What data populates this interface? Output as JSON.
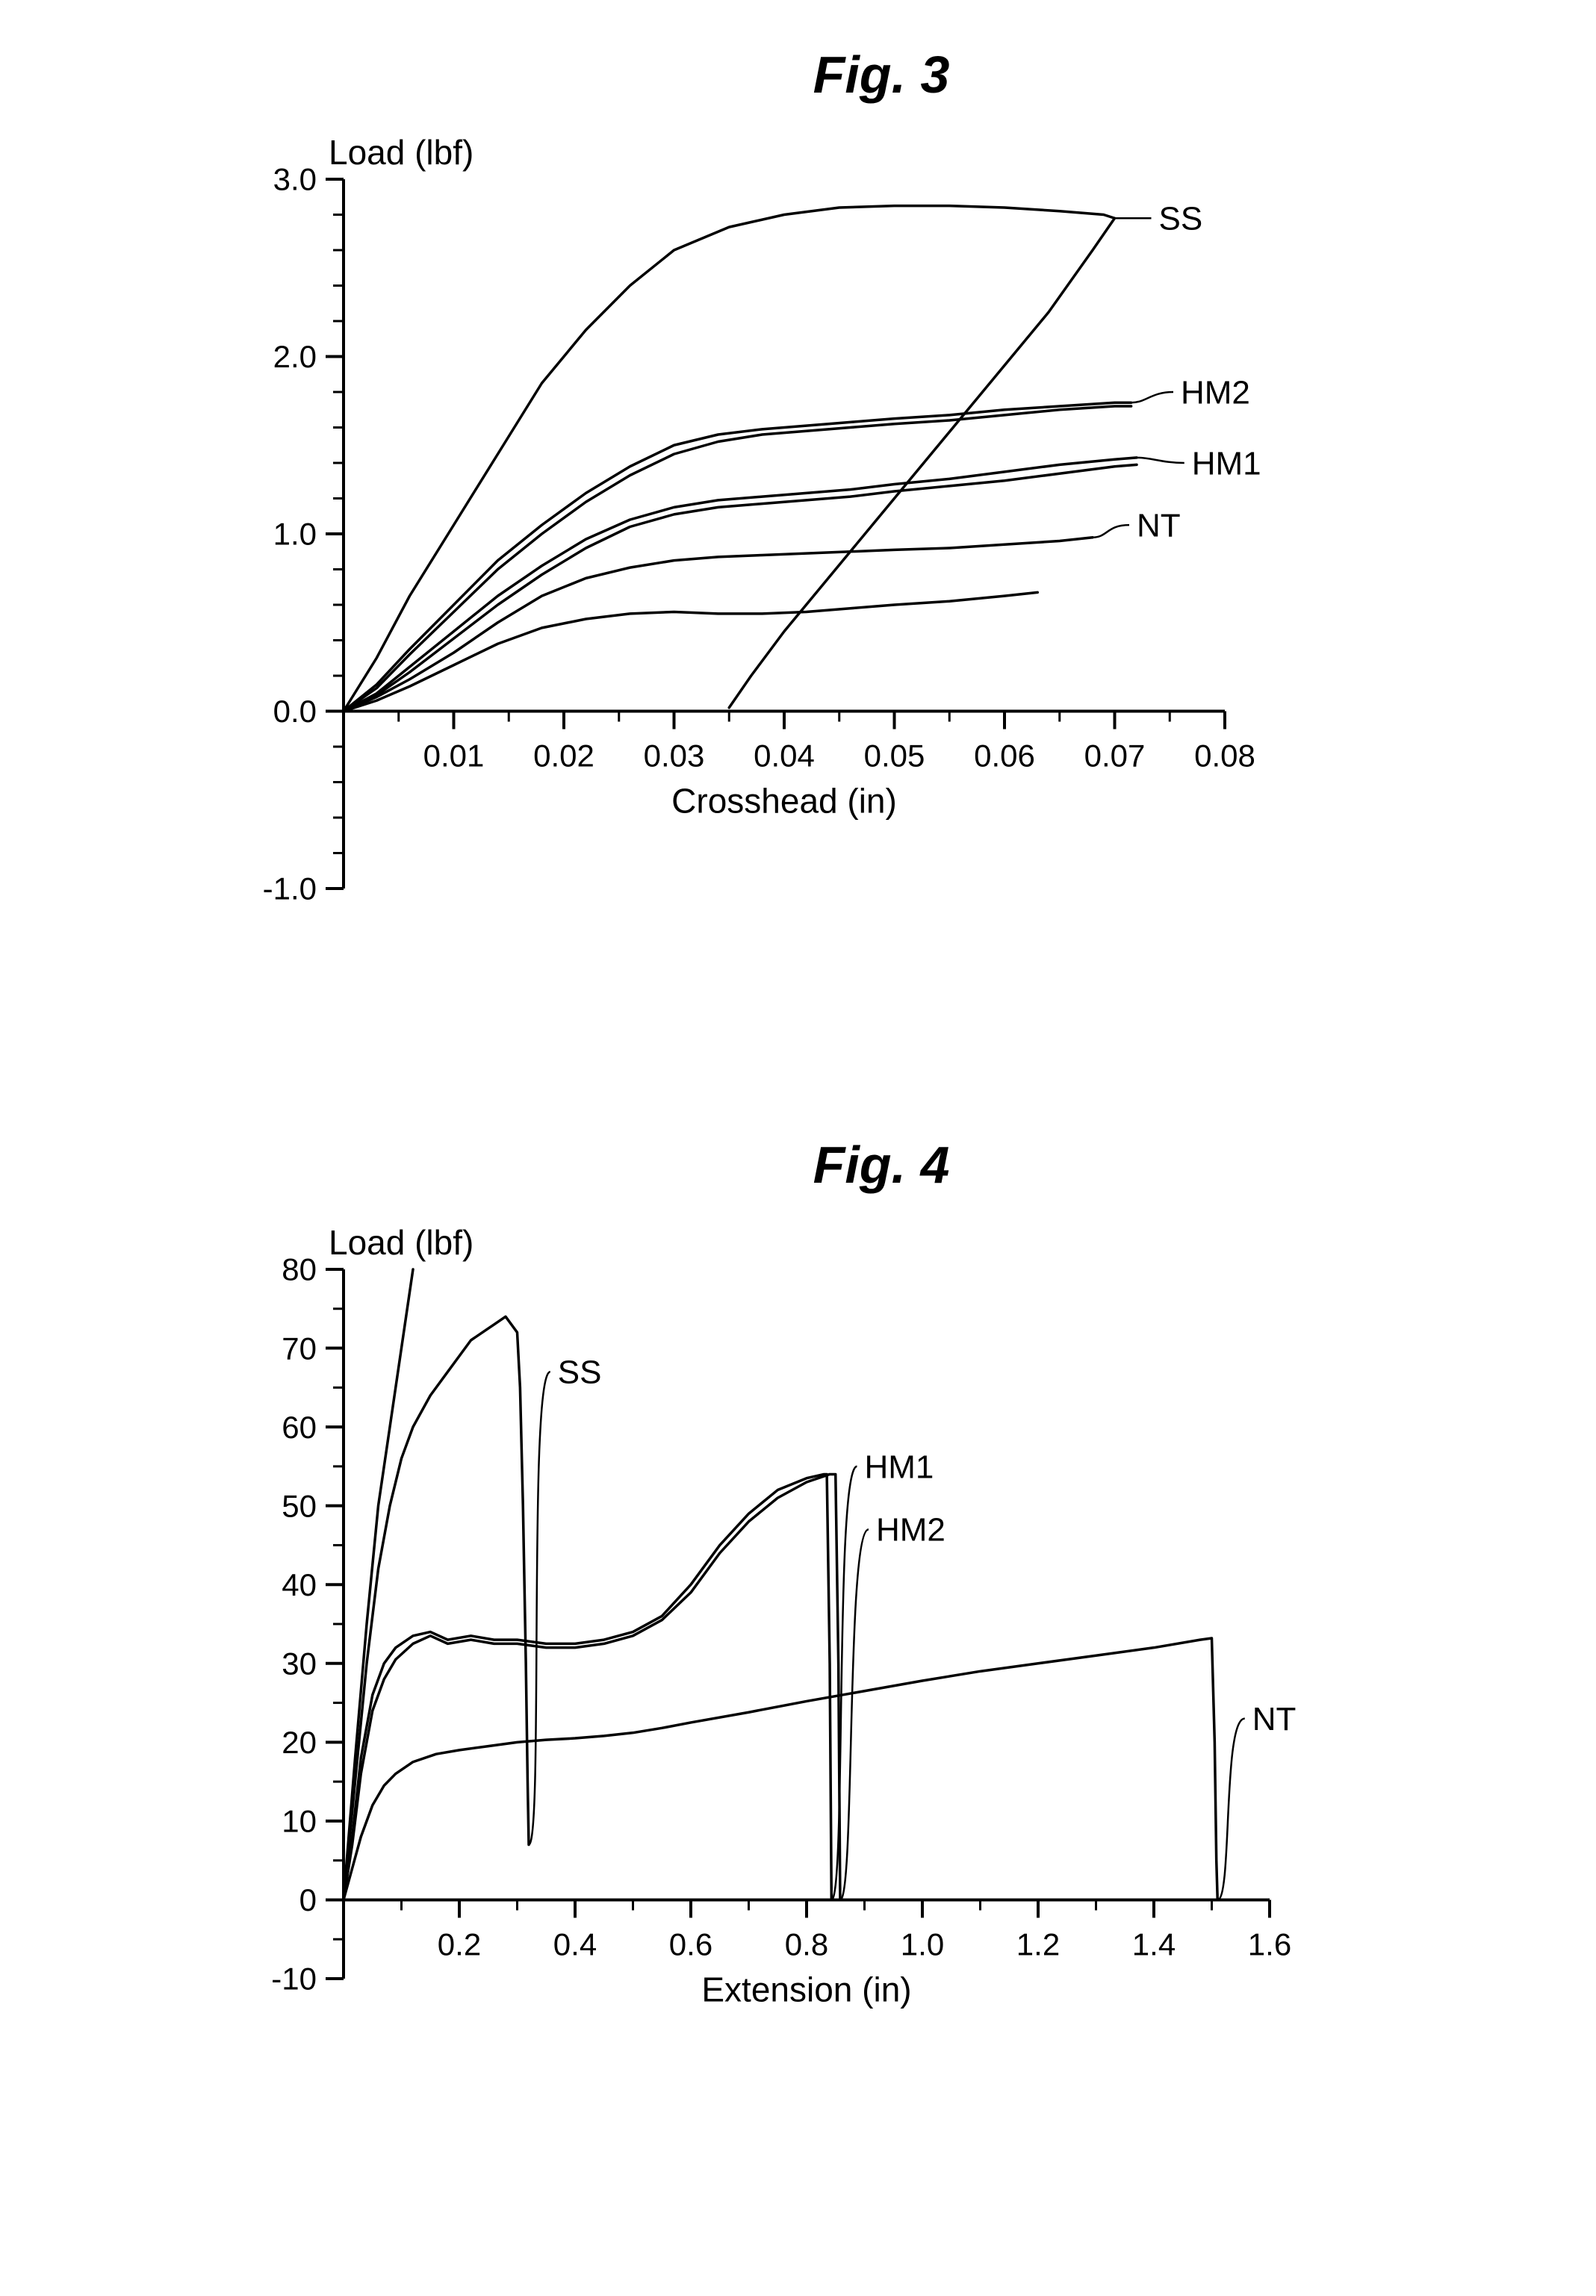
{
  "fig3": {
    "title": "Fig. 3",
    "type": "line",
    "ylabel": "Load (lbf)",
    "xlabel": "Crosshead (in)",
    "xlim": [
      0,
      0.08
    ],
    "ylim": [
      -1.0,
      3.0
    ],
    "xticks": [
      0.01,
      0.02,
      0.03,
      0.04,
      0.05,
      0.06,
      0.07,
      0.08
    ],
    "yticks": [
      -1.0,
      0.0,
      1.0,
      2.0,
      3.0
    ],
    "y_minor_step": 0.2,
    "line_color": "#000000",
    "stroke_width": 3.5,
    "axis_color": "#000000",
    "axis_width": 4,
    "background_color": "#ffffff",
    "title_fontsize": 70,
    "label_fontsize": 46,
    "tick_fontsize": 42,
    "callout_fontsize": 44,
    "series": {
      "SS": {
        "label": "SS",
        "points": [
          [
            0.0,
            0.0
          ],
          [
            0.003,
            0.3
          ],
          [
            0.006,
            0.65
          ],
          [
            0.01,
            1.05
          ],
          [
            0.014,
            1.45
          ],
          [
            0.018,
            1.85
          ],
          [
            0.022,
            2.15
          ],
          [
            0.026,
            2.4
          ],
          [
            0.03,
            2.6
          ],
          [
            0.035,
            2.73
          ],
          [
            0.04,
            2.8
          ],
          [
            0.045,
            2.84
          ],
          [
            0.05,
            2.85
          ],
          [
            0.055,
            2.85
          ],
          [
            0.06,
            2.84
          ],
          [
            0.065,
            2.82
          ],
          [
            0.069,
            2.8
          ],
          [
            0.07,
            2.78
          ]
        ],
        "callout_xy": [
          0.074,
          2.78
        ]
      },
      "HM2": {
        "label": "HM2",
        "points": [
          [
            0.0,
            0.0
          ],
          [
            0.003,
            0.15
          ],
          [
            0.006,
            0.35
          ],
          [
            0.01,
            0.6
          ],
          [
            0.014,
            0.85
          ],
          [
            0.018,
            1.05
          ],
          [
            0.022,
            1.23
          ],
          [
            0.026,
            1.38
          ],
          [
            0.03,
            1.5
          ],
          [
            0.034,
            1.56
          ],
          [
            0.038,
            1.59
          ],
          [
            0.042,
            1.61
          ],
          [
            0.046,
            1.63
          ],
          [
            0.05,
            1.65
          ],
          [
            0.055,
            1.67
          ],
          [
            0.06,
            1.7
          ],
          [
            0.065,
            1.72
          ],
          [
            0.07,
            1.74
          ],
          [
            0.0715,
            1.74
          ]
        ],
        "callout_xy": [
          0.076,
          1.8
        ]
      },
      "HM2b": {
        "label": null,
        "points": [
          [
            0.0,
            0.0
          ],
          [
            0.003,
            0.13
          ],
          [
            0.006,
            0.32
          ],
          [
            0.01,
            0.56
          ],
          [
            0.014,
            0.8
          ],
          [
            0.018,
            1.0
          ],
          [
            0.022,
            1.18
          ],
          [
            0.026,
            1.33
          ],
          [
            0.03,
            1.45
          ],
          [
            0.034,
            1.52
          ],
          [
            0.038,
            1.56
          ],
          [
            0.042,
            1.58
          ],
          [
            0.046,
            1.6
          ],
          [
            0.05,
            1.62
          ],
          [
            0.055,
            1.64
          ],
          [
            0.06,
            1.67
          ],
          [
            0.065,
            1.7
          ],
          [
            0.07,
            1.72
          ],
          [
            0.0715,
            1.72
          ]
        ]
      },
      "HM1": {
        "label": "HM1",
        "points": [
          [
            0.0,
            0.0
          ],
          [
            0.003,
            0.1
          ],
          [
            0.006,
            0.25
          ],
          [
            0.01,
            0.45
          ],
          [
            0.014,
            0.65
          ],
          [
            0.018,
            0.82
          ],
          [
            0.022,
            0.97
          ],
          [
            0.026,
            1.08
          ],
          [
            0.03,
            1.15
          ],
          [
            0.034,
            1.19
          ],
          [
            0.038,
            1.21
          ],
          [
            0.042,
            1.23
          ],
          [
            0.046,
            1.25
          ],
          [
            0.05,
            1.28
          ],
          [
            0.055,
            1.31
          ],
          [
            0.06,
            1.35
          ],
          [
            0.065,
            1.39
          ],
          [
            0.07,
            1.42
          ],
          [
            0.072,
            1.43
          ]
        ],
        "callout_xy": [
          0.077,
          1.4
        ]
      },
      "HM1b": {
        "label": null,
        "points": [
          [
            0.0,
            0.0
          ],
          [
            0.003,
            0.09
          ],
          [
            0.006,
            0.22
          ],
          [
            0.01,
            0.41
          ],
          [
            0.014,
            0.6
          ],
          [
            0.018,
            0.77
          ],
          [
            0.022,
            0.92
          ],
          [
            0.026,
            1.04
          ],
          [
            0.03,
            1.11
          ],
          [
            0.034,
            1.15
          ],
          [
            0.038,
            1.17
          ],
          [
            0.042,
            1.19
          ],
          [
            0.046,
            1.21
          ],
          [
            0.05,
            1.24
          ],
          [
            0.055,
            1.27
          ],
          [
            0.06,
            1.3
          ],
          [
            0.065,
            1.34
          ],
          [
            0.07,
            1.38
          ],
          [
            0.072,
            1.39
          ]
        ]
      },
      "NT": {
        "label": "NT",
        "points": [
          [
            0.0,
            0.0
          ],
          [
            0.003,
            0.08
          ],
          [
            0.006,
            0.18
          ],
          [
            0.01,
            0.33
          ],
          [
            0.014,
            0.5
          ],
          [
            0.018,
            0.65
          ],
          [
            0.022,
            0.75
          ],
          [
            0.026,
            0.81
          ],
          [
            0.03,
            0.85
          ],
          [
            0.034,
            0.87
          ],
          [
            0.038,
            0.88
          ],
          [
            0.042,
            0.89
          ],
          [
            0.046,
            0.9
          ],
          [
            0.05,
            0.91
          ],
          [
            0.055,
            0.92
          ],
          [
            0.06,
            0.94
          ],
          [
            0.065,
            0.96
          ],
          [
            0.068,
            0.98
          ]
        ],
        "callout_xy": [
          0.072,
          1.05
        ]
      },
      "NTb": {
        "label": null,
        "points": [
          [
            0.0,
            0.0
          ],
          [
            0.003,
            0.06
          ],
          [
            0.006,
            0.14
          ],
          [
            0.01,
            0.26
          ],
          [
            0.014,
            0.38
          ],
          [
            0.018,
            0.47
          ],
          [
            0.022,
            0.52
          ],
          [
            0.026,
            0.55
          ],
          [
            0.03,
            0.56
          ],
          [
            0.034,
            0.55
          ],
          [
            0.038,
            0.55
          ],
          [
            0.042,
            0.56
          ],
          [
            0.046,
            0.58
          ],
          [
            0.05,
            0.6
          ],
          [
            0.055,
            0.62
          ],
          [
            0.06,
            0.65
          ],
          [
            0.063,
            0.67
          ]
        ]
      },
      "unload": {
        "label": null,
        "points": [
          [
            0.07,
            2.78
          ],
          [
            0.068,
            2.6
          ],
          [
            0.064,
            2.25
          ],
          [
            0.06,
            1.95
          ],
          [
            0.056,
            1.65
          ],
          [
            0.052,
            1.35
          ],
          [
            0.048,
            1.05
          ],
          [
            0.044,
            0.75
          ],
          [
            0.04,
            0.45
          ],
          [
            0.037,
            0.2
          ],
          [
            0.035,
            0.02
          ]
        ]
      }
    }
  },
  "fig4": {
    "title": "Fig. 4",
    "type": "line",
    "ylabel": "Load (lbf)",
    "xlabel": "Extension (in)",
    "xlim": [
      0,
      1.6
    ],
    "ylim": [
      -10,
      80
    ],
    "xticks": [
      0.2,
      0.4,
      0.6,
      0.8,
      1.0,
      1.2,
      1.4,
      1.6
    ],
    "yticks": [
      -10,
      0,
      10,
      20,
      30,
      40,
      50,
      60,
      70,
      80
    ],
    "y_minor_step": 5,
    "line_color": "#000000",
    "stroke_width": 3.5,
    "axis_color": "#000000",
    "axis_width": 4,
    "background_color": "#ffffff",
    "title_fontsize": 70,
    "label_fontsize": 46,
    "tick_fontsize": 42,
    "callout_fontsize": 44,
    "series": {
      "SS": {
        "label": "SS",
        "points": [
          [
            0.0,
            0.0
          ],
          [
            0.02,
            15
          ],
          [
            0.04,
            30
          ],
          [
            0.06,
            42
          ],
          [
            0.08,
            50
          ],
          [
            0.1,
            56
          ],
          [
            0.12,
            60
          ],
          [
            0.15,
            64
          ],
          [
            0.18,
            67
          ],
          [
            0.22,
            71
          ],
          [
            0.26,
            73
          ],
          [
            0.28,
            74
          ],
          [
            0.3,
            72
          ],
          [
            0.305,
            65
          ],
          [
            0.31,
            50
          ],
          [
            0.315,
            30
          ],
          [
            0.318,
            15
          ],
          [
            0.32,
            7
          ]
        ],
        "callout_xy": [
          0.37,
          67
        ]
      },
      "SS2": {
        "label": null,
        "points": [
          [
            0.0,
            0.0
          ],
          [
            0.02,
            18
          ],
          [
            0.04,
            35
          ],
          [
            0.06,
            50
          ],
          [
            0.08,
            60
          ],
          [
            0.1,
            70
          ],
          [
            0.12,
            80
          ]
        ]
      },
      "HM1": {
        "label": "HM1",
        "points": [
          [
            0.0,
            0.0
          ],
          [
            0.015,
            8
          ],
          [
            0.03,
            18
          ],
          [
            0.05,
            26
          ],
          [
            0.07,
            30
          ],
          [
            0.09,
            32
          ],
          [
            0.12,
            33.5
          ],
          [
            0.15,
            34
          ],
          [
            0.18,
            33
          ],
          [
            0.22,
            33.5
          ],
          [
            0.26,
            33
          ],
          [
            0.3,
            33
          ],
          [
            0.35,
            32.5
          ],
          [
            0.4,
            32.5
          ],
          [
            0.45,
            33
          ],
          [
            0.5,
            34
          ],
          [
            0.55,
            36
          ],
          [
            0.6,
            40
          ],
          [
            0.65,
            45
          ],
          [
            0.7,
            49
          ],
          [
            0.75,
            52
          ],
          [
            0.8,
            53.5
          ],
          [
            0.83,
            54
          ],
          [
            0.835,
            54
          ],
          [
            0.84,
            30
          ],
          [
            0.842,
            10
          ],
          [
            0.843,
            0
          ]
        ],
        "callout_xy": [
          0.9,
          55
        ]
      },
      "HM2": {
        "label": "HM2",
        "points": [
          [
            0.0,
            0.0
          ],
          [
            0.015,
            7
          ],
          [
            0.03,
            16
          ],
          [
            0.05,
            24
          ],
          [
            0.07,
            28
          ],
          [
            0.09,
            30.5
          ],
          [
            0.12,
            32.5
          ],
          [
            0.15,
            33.5
          ],
          [
            0.18,
            32.5
          ],
          [
            0.22,
            33
          ],
          [
            0.26,
            32.5
          ],
          [
            0.3,
            32.5
          ],
          [
            0.35,
            32
          ],
          [
            0.4,
            32
          ],
          [
            0.45,
            32.5
          ],
          [
            0.5,
            33.5
          ],
          [
            0.55,
            35.5
          ],
          [
            0.6,
            39
          ],
          [
            0.65,
            44
          ],
          [
            0.7,
            48
          ],
          [
            0.75,
            51
          ],
          [
            0.8,
            53
          ],
          [
            0.84,
            54
          ],
          [
            0.85,
            54
          ],
          [
            0.855,
            30
          ],
          [
            0.857,
            10
          ],
          [
            0.858,
            0
          ]
        ],
        "callout_xy": [
          0.92,
          47
        ]
      },
      "NT": {
        "label": "NT",
        "points": [
          [
            0.0,
            0.0
          ],
          [
            0.015,
            4
          ],
          [
            0.03,
            8
          ],
          [
            0.05,
            12
          ],
          [
            0.07,
            14.5
          ],
          [
            0.09,
            16
          ],
          [
            0.12,
            17.5
          ],
          [
            0.16,
            18.5
          ],
          [
            0.2,
            19
          ],
          [
            0.25,
            19.5
          ],
          [
            0.3,
            20
          ],
          [
            0.35,
            20.3
          ],
          [
            0.4,
            20.5
          ],
          [
            0.45,
            20.8
          ],
          [
            0.5,
            21.2
          ],
          [
            0.55,
            21.8
          ],
          [
            0.6,
            22.5
          ],
          [
            0.7,
            23.8
          ],
          [
            0.8,
            25.2
          ],
          [
            0.9,
            26.5
          ],
          [
            1.0,
            27.8
          ],
          [
            1.1,
            29
          ],
          [
            1.2,
            30
          ],
          [
            1.3,
            31
          ],
          [
            1.4,
            32
          ],
          [
            1.48,
            33
          ],
          [
            1.5,
            33.2
          ],
          [
            1.505,
            20
          ],
          [
            1.508,
            5
          ],
          [
            1.51,
            0
          ]
        ],
        "callout_xy": [
          1.57,
          23
        ]
      }
    }
  }
}
